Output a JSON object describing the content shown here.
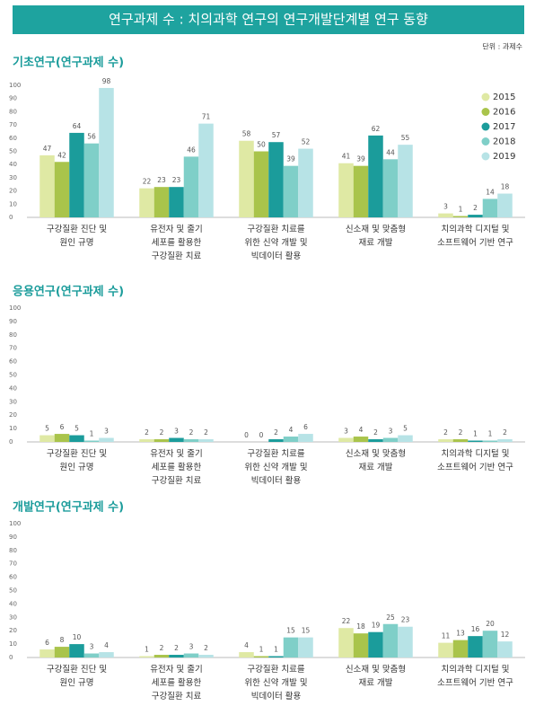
{
  "header": {
    "title": "연구과제 수 : 치의과학 연구의 연구개발단계별 연구 동향",
    "unit": "단위 : 과제수"
  },
  "chart_data": [
    {
      "type": "bar",
      "title": "기초연구(연구과제 수)",
      "categories": [
        "구강질환 진단 및\n원인 규명",
        "유전자 및 줄기\n세포를 활용한\n구강질환 치료",
        "구강질환 치료를\n위한 신약 개발 및\n빅데이터 활용",
        "신소재 및 맞춤형\n재료 개발",
        "치의과학 디지털 및\n소프트웨어 기반 연구"
      ],
      "series": [
        {
          "name": "2015",
          "color": "#dfe9a4",
          "values": [
            47,
            22,
            58,
            41,
            3
          ]
        },
        {
          "name": "2016",
          "color": "#a9c44b",
          "values": [
            42,
            23,
            50,
            39,
            1
          ]
        },
        {
          "name": "2017",
          "color": "#1b9c9b",
          "values": [
            64,
            23,
            57,
            62,
            2
          ]
        },
        {
          "name": "2018",
          "color": "#7fcfc8",
          "values": [
            56,
            46,
            39,
            44,
            14
          ]
        },
        {
          "name": "2019",
          "color": "#b7e3e6",
          "values": [
            98,
            71,
            52,
            55,
            18
          ]
        }
      ],
      "ylim": [
        0,
        100
      ],
      "yticks": [
        0,
        10,
        20,
        30,
        40,
        50,
        60,
        70,
        80,
        90,
        100
      ],
      "legend": "right"
    },
    {
      "type": "bar",
      "title": "응용연구(연구과제 수)",
      "categories": [
        "구강질환 진단 및\n원인 규명",
        "유전자 및 줄기\n세포를 활용한\n구강질환 치료",
        "구강질환 치료를\n위한 신약 개발 및\n빅데이터 활용",
        "신소재 및 맞춤형\n재료 개발",
        "치의과학 디지털 및\n소프트웨어 기반 연구"
      ],
      "series": [
        {
          "color": "#dfe9a4",
          "values": [
            5,
            2,
            0,
            3,
            2
          ]
        },
        {
          "color": "#a9c44b",
          "values": [
            6,
            2,
            0,
            4,
            2
          ]
        },
        {
          "color": "#1b9c9b",
          "values": [
            5,
            3,
            2,
            2,
            1
          ]
        },
        {
          "color": "#7fcfc8",
          "values": [
            1,
            2,
            4,
            3,
            1
          ]
        },
        {
          "color": "#b7e3e6",
          "values": [
            3,
            2,
            6,
            5,
            2
          ]
        }
      ],
      "ylim": [
        0,
        100
      ],
      "yticks": [
        0,
        10,
        20,
        30,
        40,
        50,
        60,
        70,
        80,
        90,
        100
      ]
    },
    {
      "type": "bar",
      "title": "개발연구(연구과제 수)",
      "categories": [
        "구강질환 진단 및\n원인 규명",
        "유전자 및 줄기\n세포를 활용한\n구강질환 치료",
        "구강질환 치료를\n위한 신약 개발 및\n빅데이터 활용",
        "신소재 및 맞춤형\n재료 개발",
        "치의과학 디지털 및\n소프트웨어 기반 연구"
      ],
      "series": [
        {
          "color": "#dfe9a4",
          "values": [
            6,
            1,
            4,
            22,
            11
          ]
        },
        {
          "color": "#a9c44b",
          "values": [
            8,
            2,
            1,
            18,
            13
          ]
        },
        {
          "color": "#1b9c9b",
          "values": [
            10,
            2,
            1,
            19,
            16
          ]
        },
        {
          "color": "#7fcfc8",
          "values": [
            3,
            3,
            15,
            25,
            20
          ]
        },
        {
          "color": "#b7e3e6",
          "values": [
            4,
            2,
            15,
            23,
            12
          ]
        }
      ],
      "ylim": [
        0,
        100
      ],
      "yticks": [
        0,
        10,
        20,
        30,
        40,
        50,
        60,
        70,
        80,
        90,
        100
      ]
    }
  ]
}
